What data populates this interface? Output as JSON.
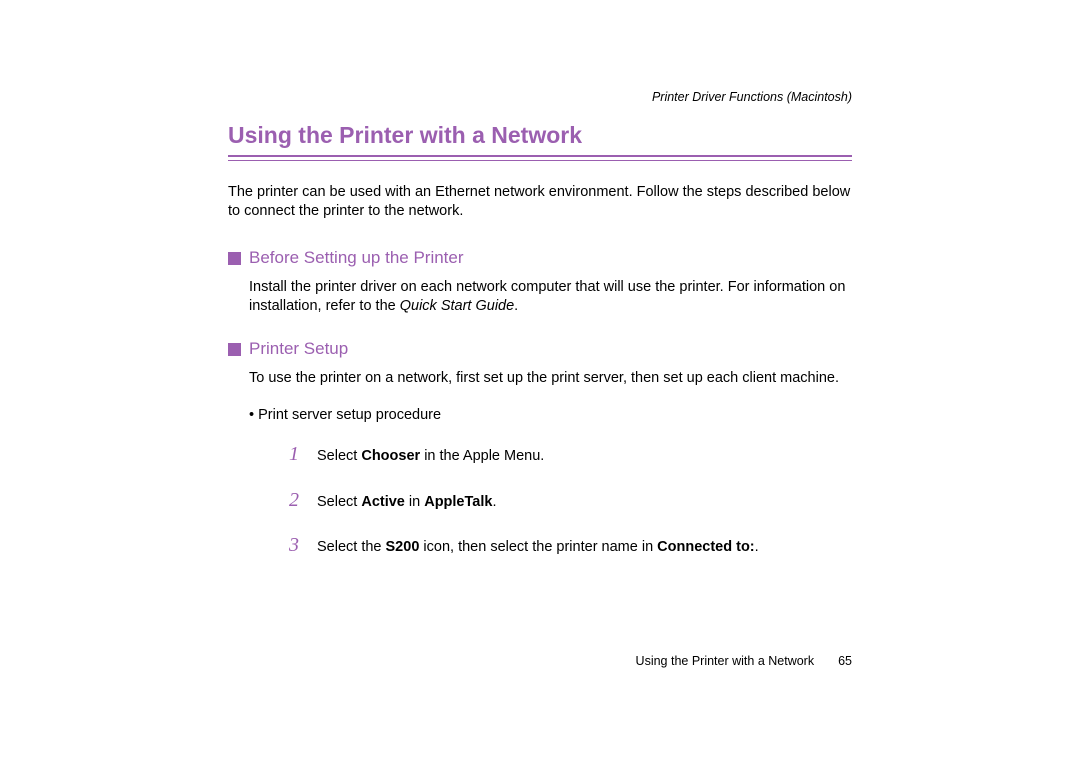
{
  "colors": {
    "accent": "#9b5fb0",
    "text": "#000000",
    "background": "#ffffff"
  },
  "typography": {
    "body_font": "Arial",
    "body_size_pt": 11,
    "title_size_pt": 17,
    "section_title_size_pt": 13,
    "step_number_font": "Times New Roman",
    "step_number_size_pt": 15,
    "step_number_style": "italic"
  },
  "header": {
    "breadcrumb": "Printer Driver Functions (Macintosh)"
  },
  "title": "Using the Printer with a Network",
  "intro": "The printer can be used with an Ethernet network environment. Follow the steps described below to connect the printer to the network.",
  "sections": [
    {
      "title": "Before Setting up the Printer",
      "body_pre": "Install the printer driver on each network computer that will use the printer.\nFor information on installation, refer to the ",
      "body_ital": "Quick Start Guide",
      "body_post": "."
    },
    {
      "title": "Printer Setup",
      "body": "To use the printer on a network, first set up the print server, then set up each client machine.",
      "sub_bullet": "• Print server setup procedure",
      "steps": [
        {
          "num": "1",
          "pre": "Select ",
          "b1": "Chooser",
          "post": " in the Apple Menu."
        },
        {
          "num": "2",
          "pre": "Select ",
          "b1": "Active",
          "mid": " in ",
          "b2": "AppleTalk",
          "post": "."
        },
        {
          "num": "3",
          "pre": "Select the ",
          "b1": "S200",
          "mid": " icon, then select the printer name in ",
          "b2": "Connected to:",
          "post": "."
        }
      ]
    }
  ],
  "footer": {
    "text": "Using the Printer with a Network",
    "page": "65"
  }
}
